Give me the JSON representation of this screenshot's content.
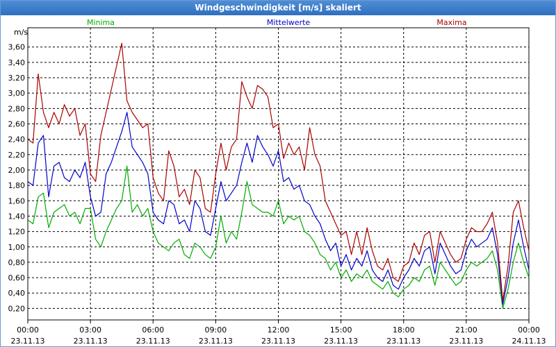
{
  "window": {
    "title": "Windgeschwindigkeit [m/s] skaliert"
  },
  "chart_data": {
    "type": "line",
    "title": "Windgeschwindigkeit [m/s] skaliert",
    "ylabel": "m/s",
    "ylim": [
      0.05,
      3.85
    ],
    "yticks": [
      "0,20",
      "0,40",
      "0,60",
      "0,80",
      "1,00",
      "1,20",
      "1,40",
      "1,60",
      "1,80",
      "2,00",
      "2,20",
      "2,40",
      "2,60",
      "2,80",
      "3,00",
      "3,20",
      "3,40",
      "3,60"
    ],
    "xticks": [
      {
        "time": "00:00",
        "date": "23.11.13"
      },
      {
        "time": "03:00",
        "date": "23.11.13"
      },
      {
        "time": "06:00",
        "date": "23.11.13"
      },
      {
        "time": "09:00",
        "date": "23.11.13"
      },
      {
        "time": "12:00",
        "date": "23.11.13"
      },
      {
        "time": "15:00",
        "date": "23.11.13"
      },
      {
        "time": "18:00",
        "date": "23.11.13"
      },
      {
        "time": "21:00",
        "date": "23.11.13"
      },
      {
        "time": "00:00",
        "date": "24.11.13"
      }
    ],
    "x_hours": [
      0,
      0.25,
      0.5,
      0.75,
      1,
      1.25,
      1.5,
      1.75,
      2,
      2.25,
      2.5,
      2.75,
      3,
      3.25,
      3.5,
      3.75,
      4,
      4.25,
      4.5,
      4.75,
      5,
      5.25,
      5.5,
      5.75,
      6,
      6.25,
      6.5,
      6.75,
      7,
      7.25,
      7.5,
      7.75,
      8,
      8.25,
      8.5,
      8.75,
      9,
      9.25,
      9.5,
      9.75,
      10,
      10.25,
      10.5,
      10.75,
      11,
      11.25,
      11.5,
      11.75,
      12,
      12.25,
      12.5,
      12.75,
      13,
      13.25,
      13.5,
      13.75,
      14,
      14.25,
      14.5,
      14.75,
      15,
      15.25,
      15.5,
      15.75,
      16,
      16.25,
      16.5,
      16.75,
      17,
      17.25,
      17.5,
      17.75,
      18,
      18.25,
      18.5,
      18.75,
      19,
      19.25,
      19.5,
      19.75,
      20,
      20.25,
      20.5,
      20.75,
      21,
      21.25,
      21.5,
      21.75,
      22,
      22.25,
      22.5,
      22.75,
      23,
      23.25,
      23.5,
      23.75,
      24
    ],
    "legend": [
      "Minima",
      "Mittelwerte",
      "Maxima"
    ],
    "series": [
      {
        "name": "Minima",
        "color": "#00aa00",
        "values": [
          1.35,
          1.3,
          1.65,
          1.7,
          1.25,
          1.45,
          1.5,
          1.55,
          1.4,
          1.45,
          1.3,
          1.5,
          1.5,
          1.1,
          1.0,
          1.2,
          1.35,
          1.5,
          1.6,
          2.05,
          1.45,
          1.55,
          1.4,
          1.5,
          1.2,
          1.05,
          1.0,
          0.95,
          1.05,
          1.1,
          0.9,
          0.85,
          1.05,
          1.0,
          0.9,
          0.85,
          1.0,
          1.4,
          1.05,
          1.2,
          1.1,
          1.45,
          1.85,
          1.55,
          1.5,
          1.45,
          1.45,
          1.4,
          1.6,
          1.3,
          1.4,
          1.35,
          1.4,
          1.2,
          1.15,
          1.05,
          0.9,
          0.85,
          0.7,
          0.8,
          0.6,
          0.7,
          0.55,
          0.65,
          0.6,
          0.7,
          0.55,
          0.5,
          0.45,
          0.55,
          0.4,
          0.35,
          0.45,
          0.5,
          0.6,
          0.55,
          0.7,
          0.75,
          0.5,
          0.8,
          0.7,
          0.6,
          0.5,
          0.55,
          0.7,
          0.8,
          0.75,
          0.8,
          0.85,
          0.95,
          0.7,
          0.2,
          0.45,
          0.8,
          1.05,
          0.8,
          0.6
        ]
      },
      {
        "name": "Mittelwerte",
        "color": "#0000cc",
        "values": [
          1.85,
          1.8,
          2.35,
          2.45,
          1.65,
          2.05,
          2.1,
          1.9,
          1.85,
          2.0,
          1.9,
          2.1,
          1.65,
          1.4,
          1.45,
          1.95,
          2.1,
          2.3,
          2.5,
          2.75,
          2.3,
          2.2,
          2.1,
          1.95,
          1.45,
          1.35,
          1.3,
          1.6,
          1.55,
          1.3,
          1.35,
          1.2,
          1.6,
          1.5,
          1.2,
          1.15,
          1.5,
          1.85,
          1.6,
          1.7,
          1.8,
          2.1,
          2.35,
          2.1,
          2.45,
          2.3,
          2.2,
          2.05,
          2.25,
          1.85,
          1.9,
          1.75,
          1.8,
          1.6,
          1.55,
          1.4,
          1.3,
          1.1,
          0.95,
          1.05,
          0.75,
          0.9,
          0.7,
          0.85,
          0.75,
          0.95,
          0.7,
          0.6,
          0.55,
          0.7,
          0.5,
          0.45,
          0.6,
          0.7,
          0.85,
          0.75,
          0.95,
          1.0,
          0.65,
          1.05,
          0.9,
          0.75,
          0.65,
          0.7,
          0.95,
          1.1,
          1.0,
          1.05,
          1.1,
          1.25,
          0.9,
          0.25,
          0.6,
          1.05,
          1.35,
          1.0,
          0.7
        ]
      },
      {
        "name": "Maxima",
        "color": "#aa0000",
        "values": [
          2.4,
          2.35,
          3.25,
          2.75,
          2.55,
          2.75,
          2.6,
          2.85,
          2.7,
          2.8,
          2.45,
          2.6,
          1.95,
          1.85,
          2.45,
          2.75,
          3.05,
          3.35,
          3.65,
          2.9,
          2.75,
          2.65,
          2.55,
          2.6,
          1.9,
          1.7,
          1.6,
          2.25,
          2.05,
          1.65,
          1.75,
          1.55,
          2.0,
          1.9,
          1.5,
          1.45,
          1.95,
          2.35,
          2.0,
          2.3,
          2.4,
          3.15,
          2.95,
          2.8,
          3.1,
          3.05,
          2.95,
          2.55,
          2.6,
          2.15,
          2.35,
          2.2,
          2.3,
          2.0,
          2.55,
          2.2,
          2.05,
          1.6,
          1.45,
          1.3,
          1.15,
          1.2,
          0.9,
          1.2,
          0.9,
          1.25,
          0.95,
          0.75,
          0.7,
          0.85,
          0.6,
          0.55,
          0.75,
          0.8,
          1.05,
          0.9,
          1.15,
          1.2,
          0.8,
          1.2,
          1.05,
          0.9,
          0.8,
          0.85,
          1.1,
          1.25,
          1.2,
          1.2,
          1.3,
          1.45,
          1.05,
          0.3,
          0.75,
          1.45,
          1.6,
          1.25,
          0.95
        ]
      }
    ]
  }
}
